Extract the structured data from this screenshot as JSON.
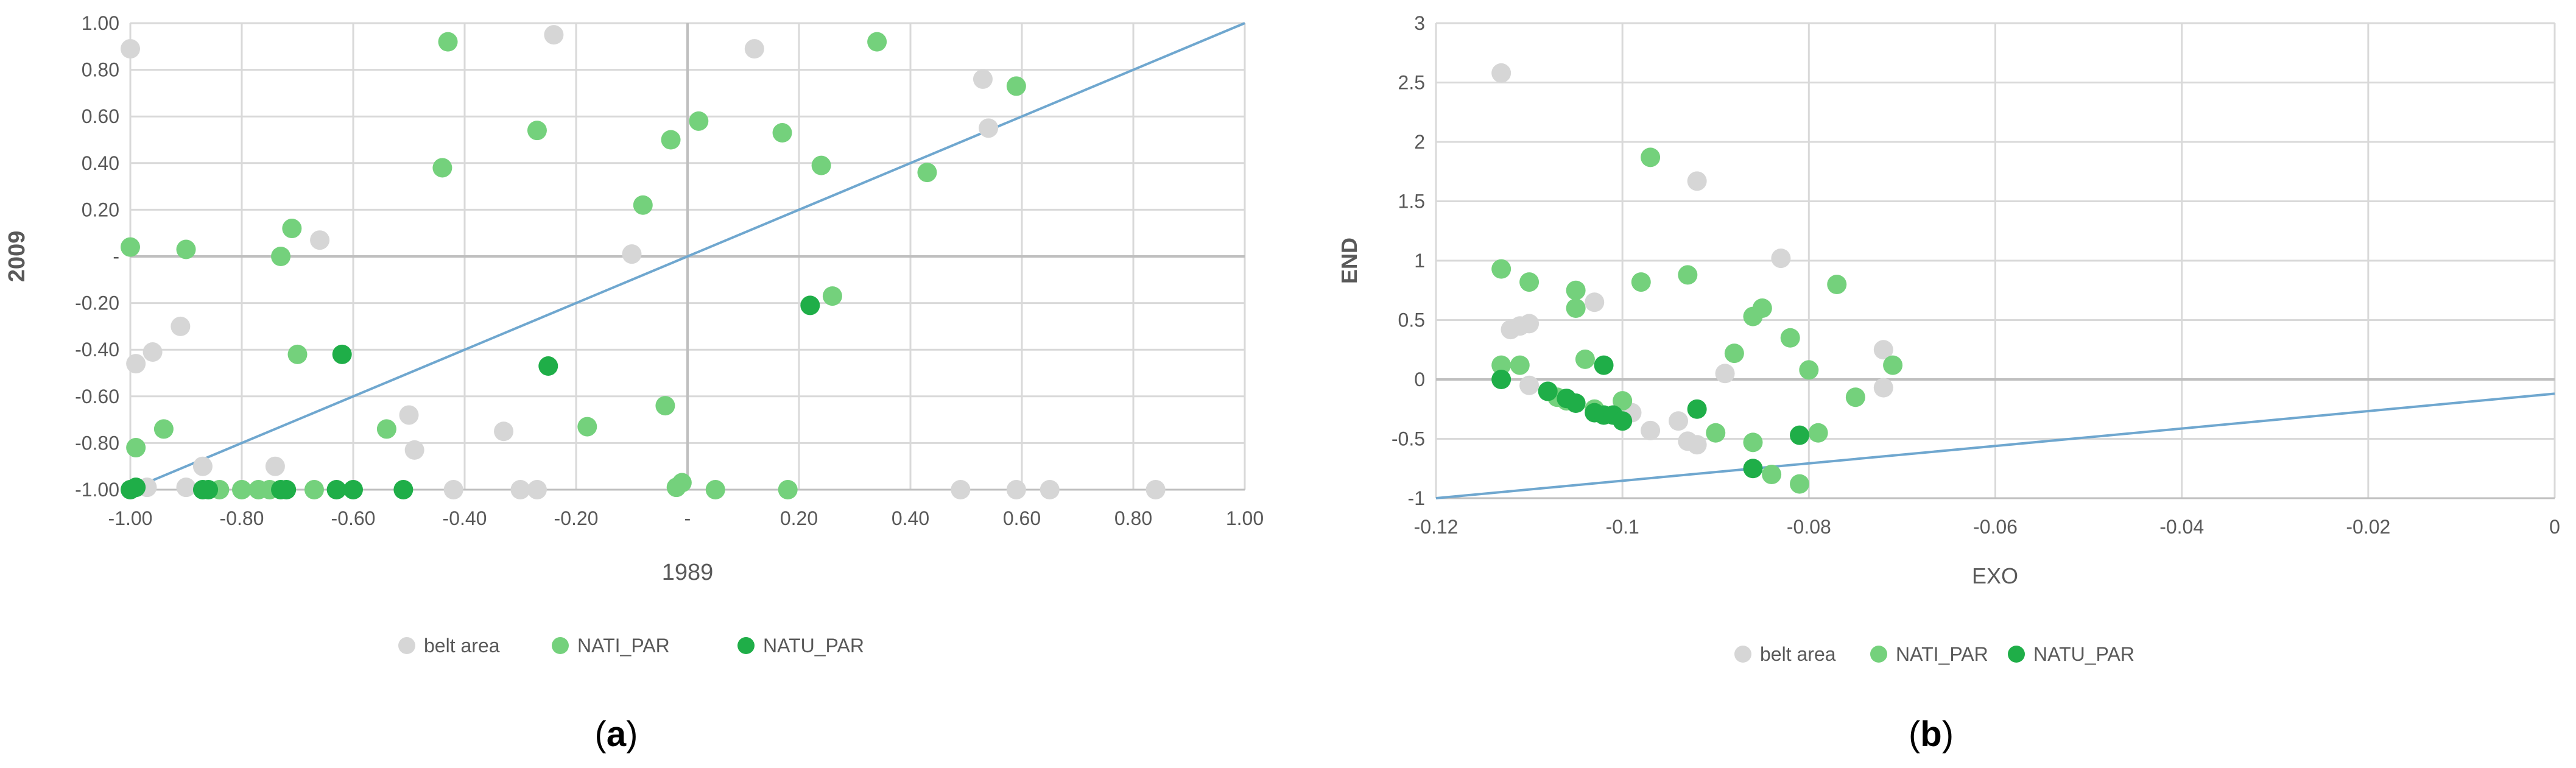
{
  "figure": {
    "panels": [
      {
        "label_open": "(",
        "label_letter": "a",
        "label_close": ")"
      },
      {
        "label_open": "(",
        "label_letter": "b",
        "label_close": ")"
      }
    ]
  },
  "chart_data": [
    {
      "type": "scatter",
      "title": "",
      "xlabel": "1989",
      "ylabel": "2009",
      "xlim": [
        -1.0,
        1.0
      ],
      "ylim": [
        -1.0,
        1.0
      ],
      "xticks": [
        "-1.00",
        "-0.80",
        "-0.60",
        "-0.40",
        "-0.20",
        "-",
        "0.20",
        "0.40",
        "0.60",
        "0.80",
        "1.00"
      ],
      "xtick_values": [
        -1.0,
        -0.8,
        -0.6,
        -0.4,
        -0.2,
        0.0,
        0.2,
        0.4,
        0.6,
        0.8,
        1.0
      ],
      "yticks": [
        "1.00",
        "0.80",
        "0.60",
        "0.40",
        "0.20",
        "-",
        "-0.20",
        "-0.40",
        "-0.60",
        "-0.80",
        "-1.00"
      ],
      "ytick_values": [
        1.0,
        0.8,
        0.6,
        0.4,
        0.2,
        0.0,
        -0.2,
        -0.4,
        -0.6,
        -0.8,
        -1.0
      ],
      "grid": true,
      "legend_position": "bottom",
      "reference_line": {
        "from": [
          -1.0,
          -1.0
        ],
        "to": [
          1.0,
          1.0
        ]
      },
      "series": [
        {
          "name": "belt area",
          "color": "#d6d6d6",
          "points": [
            [
              -1.0,
              0.89
            ],
            [
              -0.99,
              -0.46
            ],
            [
              -0.96,
              -0.41
            ],
            [
              -0.91,
              -0.3
            ],
            [
              -0.9,
              -0.99
            ],
            [
              -0.87,
              -0.9
            ],
            [
              -0.97,
              -0.99
            ],
            [
              -0.74,
              -0.9
            ],
            [
              -0.66,
              0.07
            ],
            [
              -0.5,
              -0.68
            ],
            [
              -0.49,
              -0.83
            ],
            [
              -0.42,
              -1.0
            ],
            [
              -0.33,
              -0.75
            ],
            [
              -0.3,
              -1.0
            ],
            [
              -0.27,
              -1.0
            ],
            [
              -0.24,
              0.95
            ],
            [
              -0.1,
              0.01
            ],
            [
              0.12,
              0.89
            ],
            [
              0.49,
              -1.0
            ],
            [
              0.53,
              0.76
            ],
            [
              0.54,
              0.55
            ],
            [
              0.59,
              -1.0
            ],
            [
              0.65,
              -1.0
            ],
            [
              0.84,
              -1.0
            ]
          ]
        },
        {
          "name": "NATI_PAR",
          "color": "#74d17c",
          "points": [
            [
              -1.0,
              0.04
            ],
            [
              -0.99,
              -0.82
            ],
            [
              -0.9,
              0.03
            ],
            [
              -0.94,
              -0.74
            ],
            [
              -0.84,
              -1.0
            ],
            [
              -0.8,
              -1.0
            ],
            [
              -0.77,
              -1.0
            ],
            [
              -0.75,
              -1.0
            ],
            [
              -0.73,
              0.0
            ],
            [
              -0.71,
              0.12
            ],
            [
              -0.7,
              -0.42
            ],
            [
              -0.67,
              -1.0
            ],
            [
              -0.54,
              -0.74
            ],
            [
              -0.44,
              0.38
            ],
            [
              -0.43,
              0.92
            ],
            [
              -0.27,
              0.54
            ],
            [
              -0.18,
              -0.73
            ],
            [
              -0.08,
              0.22
            ],
            [
              -0.04,
              -0.64
            ],
            [
              -0.03,
              0.5
            ],
            [
              -0.02,
              -0.99
            ],
            [
              -0.01,
              -0.97
            ],
            [
              0.02,
              0.58
            ],
            [
              0.05,
              -1.0
            ],
            [
              0.17,
              0.53
            ],
            [
              0.18,
              -1.0
            ],
            [
              0.24,
              0.39
            ],
            [
              0.26,
              -0.17
            ],
            [
              0.34,
              0.92
            ],
            [
              0.43,
              0.36
            ],
            [
              0.59,
              0.73
            ]
          ]
        },
        {
          "name": "NATU_PAR",
          "color": "#1fae48",
          "points": [
            [
              -1.0,
              -1.0
            ],
            [
              -0.99,
              -0.99
            ],
            [
              -0.87,
              -1.0
            ],
            [
              -0.86,
              -1.0
            ],
            [
              -0.73,
              -1.0
            ],
            [
              -0.72,
              -1.0
            ],
            [
              -0.63,
              -1.0
            ],
            [
              -0.62,
              -0.42
            ],
            [
              -0.6,
              -1.0
            ],
            [
              -0.51,
              -1.0
            ],
            [
              -0.25,
              -0.47
            ],
            [
              0.22,
              -0.21
            ]
          ]
        }
      ]
    },
    {
      "type": "scatter",
      "title": "",
      "xlabel": "EXO",
      "ylabel": "END",
      "xlim": [
        -0.12,
        0.0
      ],
      "ylim": [
        -1.0,
        3.0
      ],
      "xticks": [
        "-0.12",
        "-0.1",
        "-0.08",
        "-0.06",
        "-0.04",
        "-0.02",
        "0"
      ],
      "xtick_values": [
        -0.12,
        -0.1,
        -0.08,
        -0.06,
        -0.04,
        -0.02,
        0.0
      ],
      "yticks": [
        "3",
        "2.5",
        "2",
        "1.5",
        "1",
        "0.5",
        "0",
        "-0.5",
        "-1"
      ],
      "ytick_values": [
        3.0,
        2.5,
        2.0,
        1.5,
        1.0,
        0.5,
        0.0,
        -0.5,
        -1.0
      ],
      "grid": true,
      "legend_position": "bottom",
      "reference_line": {
        "from": [
          -0.12,
          -1.0
        ],
        "to": [
          0.0,
          -0.12
        ]
      },
      "series": [
        {
          "name": "belt area",
          "color": "#d6d6d6",
          "points": [
            [
              -0.113,
              2.58
            ],
            [
              -0.112,
              0.42
            ],
            [
              -0.111,
              0.45
            ],
            [
              -0.11,
              0.47
            ],
            [
              -0.11,
              -0.05
            ],
            [
              -0.103,
              0.65
            ],
            [
              -0.1,
              -0.2
            ],
            [
              -0.099,
              -0.28
            ],
            [
              -0.097,
              -0.43
            ],
            [
              -0.094,
              -0.35
            ],
            [
              -0.093,
              -0.52
            ],
            [
              -0.092,
              -0.55
            ],
            [
              -0.092,
              1.67
            ],
            [
              -0.089,
              0.05
            ],
            [
              -0.083,
              1.02
            ],
            [
              -0.072,
              0.25
            ],
            [
              -0.072,
              -0.07
            ]
          ]
        },
        {
          "name": "NATI_PAR",
          "color": "#74d17c",
          "points": [
            [
              -0.113,
              0.93
            ],
            [
              -0.113,
              0.12
            ],
            [
              -0.111,
              0.12
            ],
            [
              -0.11,
              0.82
            ],
            [
              -0.108,
              -0.1
            ],
            [
              -0.107,
              -0.15
            ],
            [
              -0.106,
              -0.18
            ],
            [
              -0.105,
              0.6
            ],
            [
              -0.105,
              0.75
            ],
            [
              -0.104,
              0.17
            ],
            [
              -0.103,
              -0.25
            ],
            [
              -0.1,
              -0.18
            ],
            [
              -0.098,
              0.82
            ],
            [
              -0.097,
              1.87
            ],
            [
              -0.093,
              0.88
            ],
            [
              -0.09,
              -0.45
            ],
            [
              -0.088,
              0.22
            ],
            [
              -0.086,
              -0.53
            ],
            [
              -0.086,
              0.53
            ],
            [
              -0.085,
              0.6
            ],
            [
              -0.084,
              -0.8
            ],
            [
              -0.082,
              0.35
            ],
            [
              -0.081,
              -0.88
            ],
            [
              -0.08,
              0.08
            ],
            [
              -0.079,
              -0.45
            ],
            [
              -0.077,
              0.8
            ],
            [
              -0.075,
              -0.15
            ],
            [
              -0.071,
              0.12
            ]
          ]
        },
        {
          "name": "NATU_PAR",
          "color": "#1fae48",
          "points": [
            [
              -0.113,
              0.0
            ],
            [
              -0.108,
              -0.1
            ],
            [
              -0.106,
              -0.16
            ],
            [
              -0.105,
              -0.2
            ],
            [
              -0.103,
              -0.28
            ],
            [
              -0.102,
              -0.3
            ],
            [
              -0.101,
              -0.3
            ],
            [
              -0.102,
              0.12
            ],
            [
              -0.1,
              -0.35
            ],
            [
              -0.092,
              -0.25
            ],
            [
              -0.086,
              -0.75
            ],
            [
              -0.081,
              -0.47
            ]
          ]
        }
      ]
    }
  ]
}
